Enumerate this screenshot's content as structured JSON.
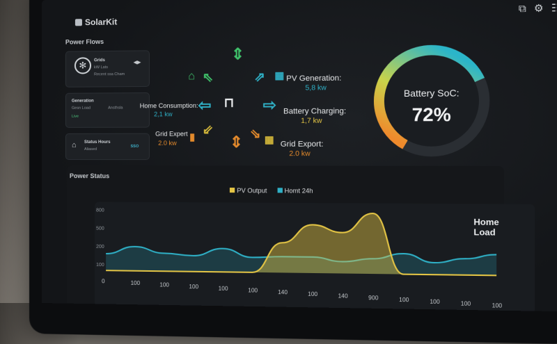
{
  "app": {
    "name": "SolarKit"
  },
  "header_icons": [
    "export-icon",
    "gear-icon",
    "database-icon"
  ],
  "left": {
    "title": "Power Flows",
    "card1": {
      "line1": "Grids",
      "line2": "kW Lats",
      "line3": "Recent ssa Cham",
      "signal": "◀▶"
    },
    "card2": {
      "line1": "Generation",
      "line2": "Gesn Load",
      "line3": "Ansthsla",
      "status": "Live"
    },
    "card3": {
      "line1": "Status Hours",
      "line2": "Aliased",
      "badge": "SSO"
    }
  },
  "flow": {
    "pv_label": "PV Generation:",
    "pv_value": "5,8 kw",
    "charging_label": "Battery Charging:",
    "charging_value": "1,7 kw",
    "grid_export_label": "Grid Export:",
    "grid_export_value": "2.0 kw",
    "home_label": "Home Consumption:",
    "home_value": "2,1 kw",
    "grid_expt_label": "Grid Expert",
    "grid_expt_value": "2.0 kw"
  },
  "battery": {
    "label": "Battery SoC:",
    "value": "72%",
    "soc": 0.72,
    "colors": {
      "start": "#2bb5c9",
      "mid": "#c9d34a",
      "end": "#ef8a2c"
    }
  },
  "chart": {
    "panel_title": "Power Status",
    "inner_title": "Home Load",
    "legend": [
      {
        "label": "PV Output",
        "color": "#e3c445"
      },
      {
        "label": "Homt 24h",
        "color": "#2fb0c6"
      }
    ],
    "y_ticks": [
      "800",
      "500",
      "200",
      "100"
    ],
    "x_ticks": [
      "0",
      "100",
      "100",
      "100",
      "100",
      "100",
      "140",
      "100",
      "140",
      "900",
      "100",
      "100",
      "100",
      "100"
    ]
  },
  "chart_data": {
    "type": "area",
    "title": "",
    "xlabel": "",
    "ylabel": "",
    "categories": [
      "0",
      "100",
      "100",
      "100",
      "100",
      "100",
      "140",
      "100",
      "140",
      "900",
      "100",
      "100",
      "100",
      "100"
    ],
    "series": [
      {
        "name": "PV Output",
        "values": [
          0,
          0,
          0,
          0,
          0,
          0,
          280,
          450,
          380,
          560,
          0,
          0,
          0,
          0
        ]
      },
      {
        "name": "Homt 24h",
        "values": [
          160,
          230,
          170,
          150,
          220,
          140,
          150,
          150,
          110,
          140,
          190,
          110,
          150,
          190
        ]
      }
    ]
  }
}
